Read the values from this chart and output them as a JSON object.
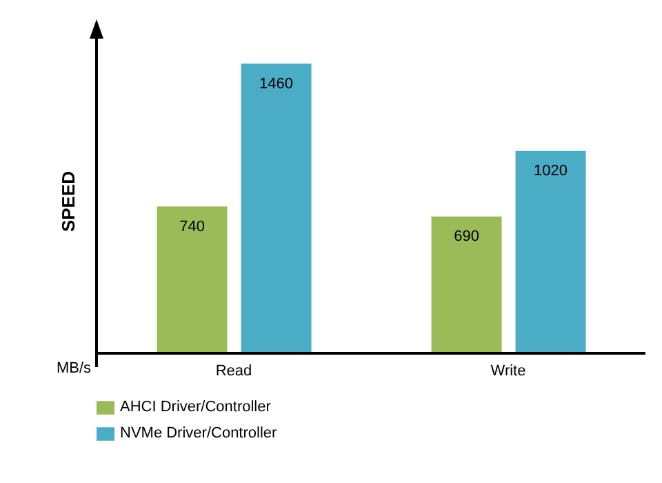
{
  "chart_data": {
    "type": "bar",
    "ylabel": "SPEED",
    "annotations": [
      "MB/s"
    ],
    "categories": [
      "Read",
      "Write"
    ],
    "series": [
      {
        "name": "AHCI Driver/Controller",
        "color": "#9bbb59",
        "values": [
          740,
          690
        ]
      },
      {
        "name": "NVMe Driver/Controller",
        "color": "#4bacc6",
        "values": [
          1460,
          1020
        ]
      }
    ],
    "data_labels": true,
    "grid": false,
    "legend": "bottom",
    "tick_labels": "x"
  }
}
